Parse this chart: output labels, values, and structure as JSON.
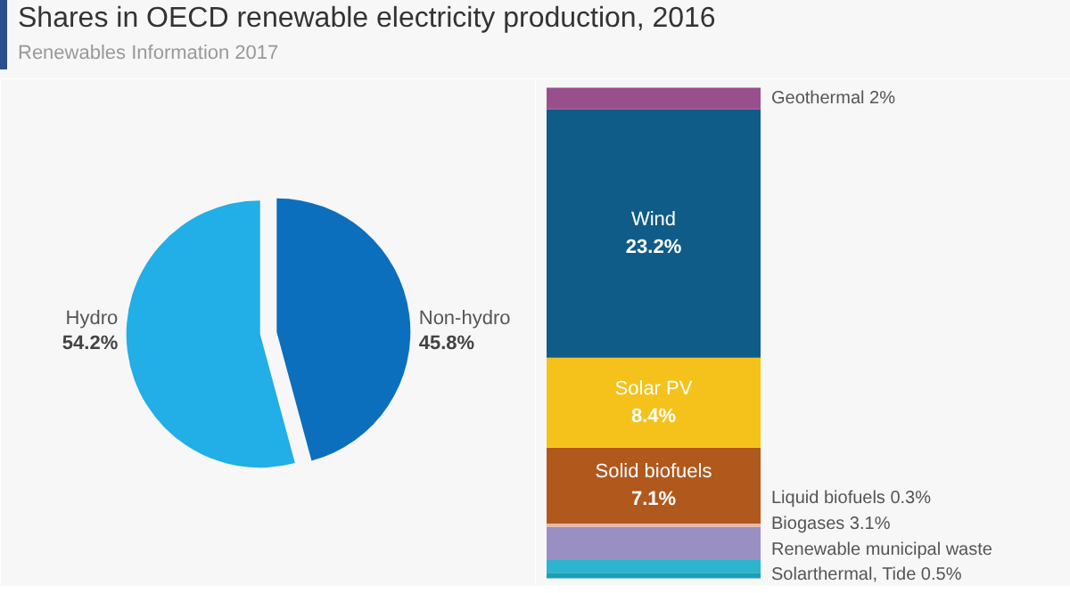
{
  "chart_data": [
    {
      "type": "pie",
      "title": "Shares in OECD renewable electricity production, 2016",
      "subtitle": "Renewables Information 2017",
      "categories": [
        "Hydro",
        "Non-hydro"
      ],
      "values": [
        54.2,
        45.8
      ],
      "colors": [
        "#22aee6",
        "#0b6fbd"
      ],
      "value_labels": [
        "54.2%",
        "45.8%"
      ]
    },
    {
      "type": "bar",
      "stacked": true,
      "categories": [
        null
      ],
      "series": [
        {
          "name": "Solarthermal, Tide",
          "color": "#1b9fb5",
          "values": [
            0.5
          ],
          "value_labels": [
            "0.5%"
          ]
        },
        {
          "name": "Renewable municipal waste",
          "color": "#2bb5cf",
          "values": [
            1.2
          ],
          "value_labels": [
            null
          ]
        },
        {
          "name": "Biogases",
          "color": "#9a8fc2",
          "values": [
            3.1
          ],
          "value_labels": [
            "3.1%"
          ]
        },
        {
          "name": "Liquid biofuels",
          "color": "#e9b8a6",
          "values": [
            0.3
          ],
          "value_labels": [
            "0.3%"
          ]
        },
        {
          "name": "Solid biofuels",
          "color": "#b1581d",
          "values": [
            7.1
          ],
          "value_labels": [
            "7.1%"
          ]
        },
        {
          "name": "Solar PV",
          "color": "#f5c21b",
          "values": [
            8.4
          ],
          "value_labels": [
            "8.4%"
          ]
        },
        {
          "name": "Wind",
          "color": "#0f5c88",
          "values": [
            23.2
          ],
          "value_labels": [
            "23.2%"
          ]
        },
        {
          "name": "Geothermal",
          "color": "#9a4f8d",
          "values": [
            2
          ],
          "value_labels": [
            "2%"
          ]
        }
      ]
    }
  ]
}
